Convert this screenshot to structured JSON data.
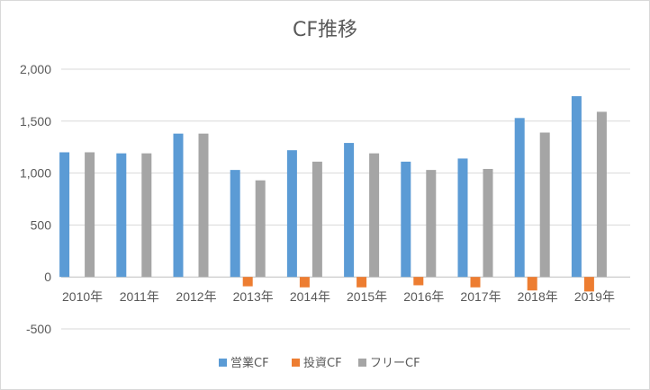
{
  "chart_data": {
    "type": "bar",
    "title": "CF推移",
    "categories": [
      "2010年",
      "2011年",
      "2012年",
      "2013年",
      "2014年",
      "2015年",
      "2016年",
      "2017年",
      "2018年",
      "2019年"
    ],
    "series": [
      {
        "name": "営業CF",
        "color": "#5b9bd5",
        "values": [
          1200,
          1190,
          1380,
          1030,
          1220,
          1290,
          1110,
          1140,
          1530,
          1740
        ]
      },
      {
        "name": "投資CF",
        "color": "#ed7d31",
        "values": [
          0,
          0,
          0,
          -90,
          -100,
          -100,
          -80,
          -100,
          -130,
          -140
        ]
      },
      {
        "name": "フリーCF",
        "color": "#a5a5a5",
        "values": [
          1200,
          1190,
          1380,
          930,
          1110,
          1190,
          1030,
          1040,
          1390,
          1590
        ]
      }
    ],
    "ylim": [
      -500,
      2000
    ],
    "yticks": [
      "-500",
      "0",
      "500",
      "1,000",
      "1,500",
      "2,000"
    ],
    "ytick_values": [
      -500,
      0,
      500,
      1000,
      1500,
      2000
    ],
    "grid": true,
    "legend": "bottom"
  }
}
